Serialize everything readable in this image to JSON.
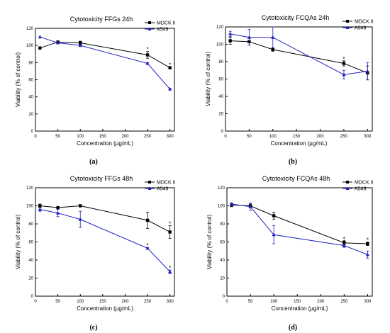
{
  "chart_data": [
    {
      "panel_label": "(a)",
      "type": "line",
      "title": "Cytotoxicity FFGs 24h",
      "xlabel": "Concentration (µg/mL)",
      "ylabel": "Viability (% of control)",
      "xlim": [
        0,
        310
      ],
      "ylim": [
        0,
        120
      ],
      "x_ticks": [
        0,
        50,
        100,
        150,
        200,
        250,
        300
      ],
      "y_ticks": [
        0,
        20,
        40,
        60,
        80,
        100,
        120
      ],
      "legend_position": "top-right",
      "series": [
        {
          "name": "MDCK II",
          "color": "#000000",
          "marker": "square",
          "x": [
            10,
            50,
            100,
            250,
            300
          ],
          "y": [
            97,
            104,
            103,
            89,
            74
          ],
          "err": [
            0,
            1,
            2,
            4,
            1
          ],
          "stars": [
            false,
            false,
            false,
            true,
            true
          ]
        },
        {
          "name": "A549",
          "color": "#1f1fbf",
          "marker": "triangle",
          "x": [
            10,
            50,
            100,
            250,
            300
          ],
          "y": [
            110,
            103,
            100,
            79,
            49
          ],
          "err": [
            0,
            1,
            1,
            1,
            1
          ],
          "stars": [
            false,
            false,
            false,
            false,
            false
          ]
        }
      ]
    },
    {
      "panel_label": "(b)",
      "type": "line",
      "title": "Cytotoxicity FCQAs 24h",
      "xlabel": "Concentration (µg/mL)",
      "ylabel": "Viability (% of control)",
      "xlim": [
        0,
        310
      ],
      "ylim": [
        0,
        120
      ],
      "x_ticks": [
        0,
        50,
        100,
        150,
        200,
        250,
        300
      ],
      "y_ticks": [
        0,
        20,
        40,
        60,
        80,
        100,
        120
      ],
      "legend_position": "top-right",
      "series": [
        {
          "name": "MDCK II",
          "color": "#000000",
          "marker": "square",
          "x": [
            10,
            50,
            100,
            250,
            300
          ],
          "y": [
            104,
            103,
            94,
            78,
            67
          ],
          "err": [
            4,
            4,
            2,
            3,
            8
          ],
          "stars": [
            false,
            false,
            false,
            true,
            false
          ]
        },
        {
          "name": "A549",
          "color": "#1f1fbf",
          "marker": "triangle",
          "x": [
            10,
            50,
            100,
            250,
            300
          ],
          "y": [
            112,
            108,
            108,
            65,
            69
          ],
          "err": [
            3,
            9,
            12,
            5,
            10
          ],
          "stars": [
            false,
            false,
            false,
            false,
            false
          ]
        }
      ]
    },
    {
      "panel_label": "(c)",
      "type": "line",
      "title": "Cytotoxicity FFGs 48h",
      "xlabel": "Concentration (µg/mL)",
      "ylabel": "Viability (% of control)",
      "xlim": [
        0,
        310
      ],
      "ylim": [
        0,
        120
      ],
      "x_ticks": [
        0,
        50,
        100,
        150,
        200,
        250,
        300
      ],
      "y_ticks": [
        0,
        20,
        40,
        60,
        80,
        100,
        120
      ],
      "legend_position": "top-right",
      "series": [
        {
          "name": "MDCK II",
          "color": "#000000",
          "marker": "square",
          "x": [
            10,
            50,
            100,
            250,
            300
          ],
          "y": [
            100,
            98,
            100,
            84,
            71
          ],
          "err": [
            2,
            1,
            1,
            9,
            7
          ],
          "stars": [
            false,
            false,
            false,
            false,
            true
          ]
        },
        {
          "name": "A549",
          "color": "#1f1fbf",
          "marker": "triangle",
          "x": [
            10,
            50,
            100,
            250,
            300
          ],
          "y": [
            96,
            92,
            85,
            53,
            27
          ],
          "err": [
            2,
            4,
            9,
            1,
            2
          ],
          "stars": [
            false,
            false,
            false,
            true,
            true
          ]
        }
      ]
    },
    {
      "panel_label": "(d)",
      "type": "line",
      "title": "Cytotoxicity FCQAs 48h",
      "xlabel": "Concentration (µg/mL)",
      "ylabel": "Viability (% of control)",
      "xlim": [
        0,
        310
      ],
      "ylim": [
        0,
        120
      ],
      "x_ticks": [
        0,
        50,
        100,
        150,
        200,
        250,
        300
      ],
      "y_ticks": [
        0,
        20,
        40,
        60,
        80,
        100,
        120
      ],
      "legend_position": "top-right",
      "series": [
        {
          "name": "MDCK II",
          "color": "#000000",
          "marker": "square",
          "x": [
            10,
            50,
            100,
            250,
            300
          ],
          "y": [
            101,
            100,
            89,
            59,
            58
          ],
          "err": [
            2,
            2,
            4,
            2,
            2
          ],
          "stars": [
            false,
            false,
            false,
            true,
            true
          ]
        },
        {
          "name": "A549",
          "color": "#1f1fbf",
          "marker": "triangle",
          "x": [
            10,
            50,
            100,
            250,
            300
          ],
          "y": [
            102,
            99,
            68,
            56,
            46
          ],
          "err": [
            1,
            4,
            10,
            2,
            4
          ],
          "stars": [
            false,
            false,
            false,
            true,
            false
          ]
        }
      ]
    }
  ]
}
